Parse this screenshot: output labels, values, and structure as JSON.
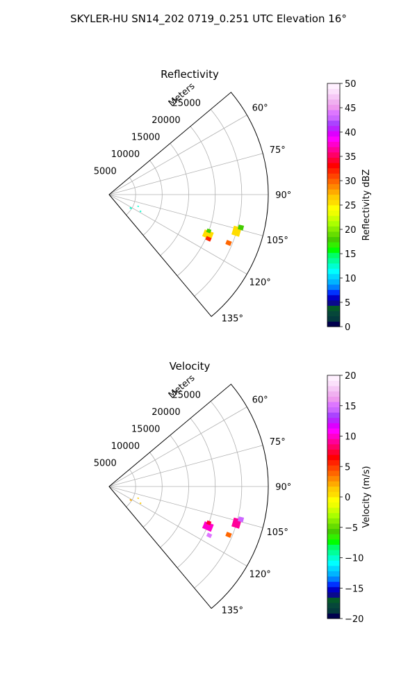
{
  "figure": {
    "suptitle": "SKYLER-HU  SN14_202  0719_0.251 UTC Elevation 16°"
  },
  "chart_data": [
    {
      "type": "polar_ppi",
      "title": "Reflectivity",
      "range_axis_label": "Meters",
      "range_ticks": [
        5000,
        10000,
        15000,
        20000,
        25000
      ],
      "range_tick_labels": [
        "5000",
        "10000",
        "15000",
        "20000",
        "25000"
      ],
      "rmax": 30000,
      "theta_range_deg": [
        50,
        140
      ],
      "theta_ticks_deg": [
        60,
        75,
        90,
        105,
        120,
        135
      ],
      "theta_tick_labels": [
        "60°",
        "75°",
        "90°",
        "105°",
        "120°",
        "135°"
      ],
      "theta_grid_deg": [
        60,
        75,
        90,
        105,
        120
      ],
      "grid": true,
      "colorbar": {
        "label": "Reflectivity dBZ",
        "min": 0,
        "max": 50,
        "ticks": [
          0,
          5,
          10,
          15,
          20,
          25,
          30,
          35,
          40,
          45,
          50
        ],
        "colors": [
          "#00004d",
          "#043a3d",
          "#06473a",
          "#055a28",
          "#0a0a8c",
          "#0000c8",
          "#0032ff",
          "#0080ff",
          "#00b4ff",
          "#00d8ff",
          "#00ffff",
          "#00ffd0",
          "#00ff99",
          "#00ff66",
          "#00ff00",
          "#33ee00",
          "#44cc00",
          "#66dd00",
          "#88ee00",
          "#aaff00",
          "#ccff00",
          "#eeff00",
          "#ffff00",
          "#ffdd00",
          "#ffcc00",
          "#ffaa00",
          "#ff8800",
          "#ff6600",
          "#ff4400",
          "#ff2200",
          "#ff0000",
          "#ff0033",
          "#ff0066",
          "#ff0099",
          "#ff00cc",
          "#ff00ff",
          "#dd00ff",
          "#bb22ff",
          "#aa44ff",
          "#cc66ff",
          "#dd77ff",
          "#ee99ee",
          "#f0b0f0",
          "#f6c8f6",
          "#fbe0fb",
          "#fff0ff"
        ]
      },
      "echoes": [
        {
          "az": 106,
          "r": 25000,
          "dr": 1500,
          "daz": 4,
          "value": 26
        },
        {
          "az": 104,
          "r": 25600,
          "dr": 1000,
          "daz": 2,
          "value": 18
        },
        {
          "az": 112,
          "r": 24300,
          "dr": 1000,
          "daz": 2,
          "value": 30
        },
        {
          "az": 112,
          "r": 20100,
          "dr": 1800,
          "daz": 4,
          "value": 25
        },
        {
          "az": 114,
          "r": 20500,
          "dr": 1000,
          "daz": 2,
          "value": 32
        },
        {
          "az": 110,
          "r": 20000,
          "dr": 800,
          "daz": 2,
          "value": 18
        },
        {
          "az": 122,
          "r": 4800,
          "dr": 400,
          "daz": 3,
          "value": 13
        },
        {
          "az": 112,
          "r": 5900,
          "dr": 300,
          "daz": 2,
          "value": 12
        },
        {
          "az": 118,
          "r": 6700,
          "dr": 300,
          "daz": 2,
          "value": 12
        }
      ]
    },
    {
      "type": "polar_ppi",
      "title": "Velocity",
      "range_axis_label": "Meters",
      "range_ticks": [
        5000,
        10000,
        15000,
        20000,
        25000
      ],
      "range_tick_labels": [
        "5000",
        "10000",
        "15000",
        "20000",
        "25000"
      ],
      "rmax": 30000,
      "theta_range_deg": [
        50,
        140
      ],
      "theta_ticks_deg": [
        60,
        75,
        90,
        105,
        120,
        135
      ],
      "theta_tick_labels": [
        "60°",
        "75°",
        "90°",
        "105°",
        "120°",
        "135°"
      ],
      "theta_grid_deg": [
        60,
        75,
        90,
        105,
        120
      ],
      "grid": true,
      "colorbar": {
        "label": "Velocity (m/s)",
        "min": -20,
        "max": 20,
        "ticks": [
          -20,
          -15,
          -10,
          -5,
          0,
          5,
          10,
          15,
          20
        ],
        "colors": [
          "#00004d",
          "#043a3d",
          "#06473a",
          "#055a28",
          "#0a0a8c",
          "#0000c8",
          "#0032ff",
          "#0080ff",
          "#00b4ff",
          "#00d8ff",
          "#00ffff",
          "#00ffd0",
          "#00ff99",
          "#00ff66",
          "#00ff00",
          "#33ee00",
          "#44cc00",
          "#66dd00",
          "#88ee00",
          "#aaff00",
          "#ccff00",
          "#eeff00",
          "#ffff00",
          "#ffdd00",
          "#ffcc00",
          "#ffaa00",
          "#ff8800",
          "#ff6600",
          "#ff4400",
          "#ff2200",
          "#ff0000",
          "#ff0033",
          "#ff0066",
          "#ff0099",
          "#ff00cc",
          "#ff00ff",
          "#dd00ff",
          "#bb22ff",
          "#aa44ff",
          "#cc66ff",
          "#dd77ff",
          "#ee99ee",
          "#f0b0f0",
          "#f6c8f6",
          "#fbe0fb",
          "#fff0ff"
        ]
      },
      "echoes": [
        {
          "az": 106,
          "r": 25000,
          "dr": 1500,
          "daz": 4,
          "value": 9
        },
        {
          "az": 104,
          "r": 25600,
          "dr": 1000,
          "daz": 2,
          "value": 14
        },
        {
          "az": 112,
          "r": 24300,
          "dr": 1000,
          "daz": 2,
          "value": 4
        },
        {
          "az": 112,
          "r": 20100,
          "dr": 1800,
          "daz": 4,
          "value": 10
        },
        {
          "az": 116,
          "r": 21000,
          "dr": 900,
          "daz": 2,
          "value": 15
        },
        {
          "az": 110,
          "r": 20000,
          "dr": 800,
          "daz": 2,
          "value": 7
        },
        {
          "az": 122,
          "r": 4800,
          "dr": 400,
          "daz": 3,
          "value": 2
        },
        {
          "az": 112,
          "r": 5900,
          "dr": 300,
          "daz": 2,
          "value": 1
        },
        {
          "az": 118,
          "r": 6700,
          "dr": 300,
          "daz": 2,
          "value": 1
        }
      ]
    }
  ]
}
